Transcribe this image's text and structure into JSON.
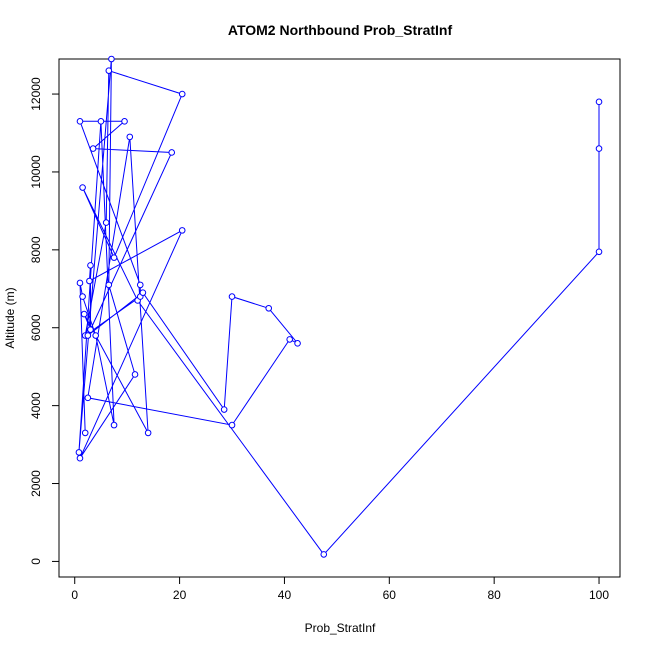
{
  "chart_data": {
    "type": "line",
    "title": "ATOM2 Northbound Prob_StratInf",
    "xlabel": "Prob_StratInf",
    "ylabel": "Altitude (m)",
    "xlim": [
      -3,
      104
    ],
    "ylim": [
      -400,
      12900
    ],
    "xticks": [
      0,
      20,
      40,
      60,
      80,
      100
    ],
    "yticks": [
      0,
      2000,
      4000,
      6000,
      8000,
      10000,
      12000
    ],
    "grid": false,
    "markers": "open-circle",
    "series": [
      {
        "color": "#0000ff",
        "x": [
          100,
          100,
          100,
          47.5,
          12,
          1.5,
          7.5,
          20.5,
          6.5,
          6,
          2,
          12.5,
          12.5,
          1,
          9.5,
          3.5,
          18.5,
          2.5,
          13,
          28.5,
          30,
          37,
          42.5,
          41,
          30,
          2.5,
          10.5,
          14,
          1.8,
          3,
          3,
          2.8,
          20.5,
          1,
          11.5,
          6.5,
          7,
          0.8,
          5,
          7.5,
          4,
          1.5,
          1,
          2
        ],
        "y": [
          11800,
          10600,
          7950,
          180,
          6700,
          9600,
          7800,
          12000,
          12600,
          8700,
          5800,
          6800,
          7100,
          11300,
          11300,
          10600,
          10500,
          5800,
          6900,
          3900,
          6800,
          6500,
          5600,
          5700,
          3500,
          4200,
          10900,
          3300,
          6350,
          5950,
          7600,
          7200,
          8500,
          2650,
          4800,
          7100,
          12900,
          2800,
          11300,
          3500,
          5800,
          6800,
          7150,
          3300
        ]
      }
    ]
  }
}
